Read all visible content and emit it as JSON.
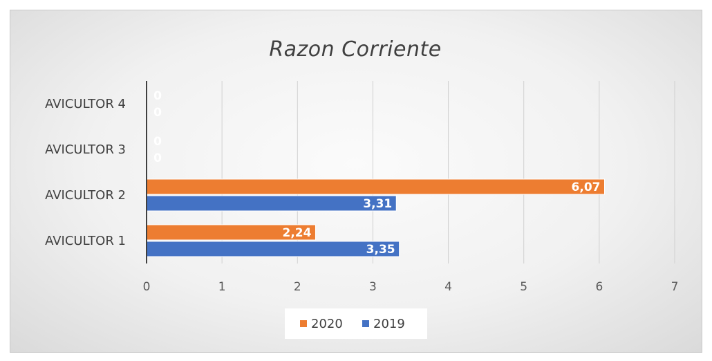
{
  "chart_data": {
    "type": "bar",
    "orientation": "horizontal",
    "title": "Razon Corriente",
    "xlabel": "",
    "ylabel": "",
    "categories": [
      "AVICULTOR 1",
      "AVICULTOR 2",
      "AVICULTOR 3",
      "AVICULTOR 4"
    ],
    "series": [
      {
        "name": "2020",
        "values": [
          2.24,
          6.07,
          0,
          0
        ],
        "labels": [
          "2,24",
          "6,07",
          "0",
          "0"
        ],
        "color": "#ED7D31"
      },
      {
        "name": "2019",
        "values": [
          3.35,
          3.31,
          0,
          0
        ],
        "labels": [
          "3,35",
          "3,31",
          "0",
          "0"
        ],
        "color": "#4472C4"
      }
    ],
    "xlim": [
      0,
      7
    ],
    "xticks": [
      "0",
      "1",
      "2",
      "3",
      "4",
      "5",
      "6",
      "7"
    ],
    "grid": true,
    "legend_position": "bottom",
    "legend_order": [
      "2020",
      "2019"
    ]
  }
}
